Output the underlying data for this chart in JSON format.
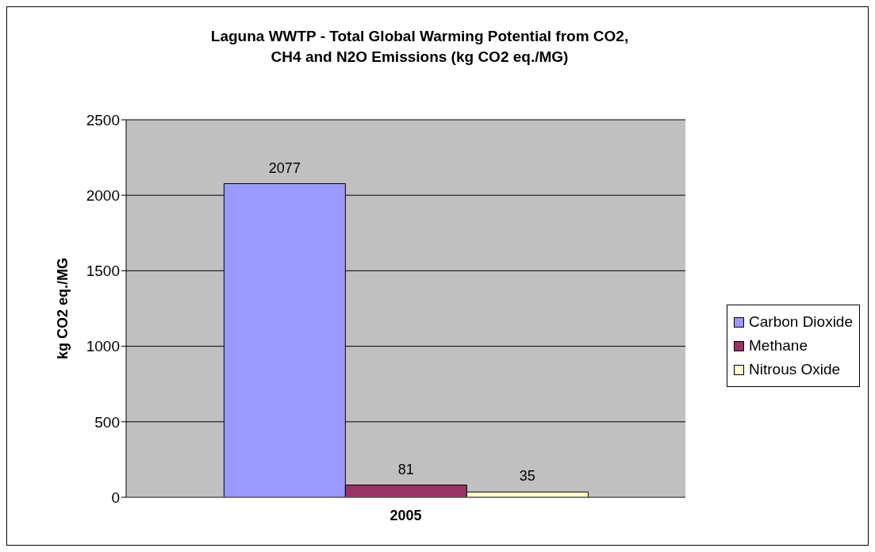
{
  "chart_data": {
    "type": "bar",
    "title": "Laguna WWTP - Total Global Warming Potential from CO2, CH4 and N2O Emissions (kg CO2 eq./MG)",
    "ylabel": "kg CO2 eq./MG",
    "categories": [
      "2005"
    ],
    "series": [
      {
        "name": "Carbon Dioxide",
        "color": "#9999ff",
        "values": [
          2077
        ]
      },
      {
        "name": "Methane",
        "color": "#993366",
        "values": [
          81
        ]
      },
      {
        "name": "Nitrous Oxide",
        "color": "#ffffcc",
        "values": [
          35
        ]
      }
    ],
    "ylim": [
      0,
      2500
    ],
    "yticks": [
      0,
      500,
      1000,
      1500,
      2000,
      2500
    ],
    "grid": "y",
    "legend": "right",
    "data_labels": true
  }
}
